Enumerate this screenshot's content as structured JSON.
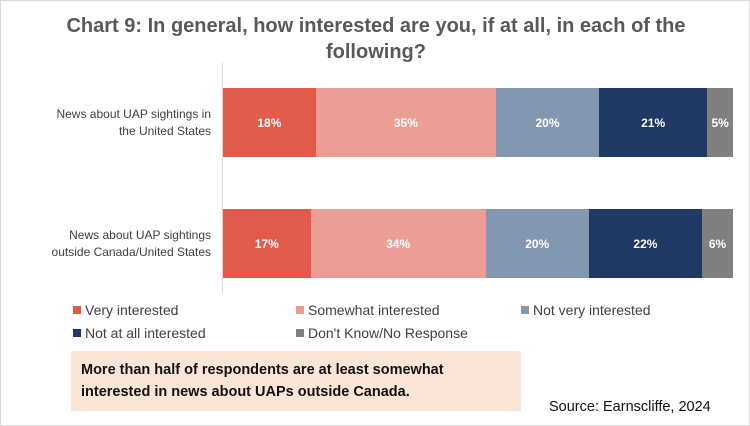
{
  "chart_data": {
    "type": "stacked-bar-horizontal",
    "title": "Chart 9: In general, how interested are you, if at all, in each of the following?",
    "categories": [
      "News about UAP sightings in the United States",
      "News about UAP sightings outside Canada/United States"
    ],
    "series": [
      {
        "name": "Very interested",
        "color": "#e15a4c",
        "values": [
          18,
          17
        ],
        "value_labels": [
          "18%",
          "17%"
        ]
      },
      {
        "name": "Somewhat interested",
        "color": "#ed9e94",
        "values": [
          35,
          34
        ],
        "value_labels": [
          "35%",
          "34%"
        ]
      },
      {
        "name": "Not very interested",
        "color": "#8497b0",
        "values": [
          20,
          20
        ],
        "value_labels": [
          "20%",
          "20%"
        ]
      },
      {
        "name": "Not at all interested",
        "color": "#1f3864",
        "values": [
          21,
          22
        ],
        "value_labels": [
          "21%",
          "22%"
        ]
      },
      {
        "name": "Don't Know/No Response",
        "color": "#7f7f7f",
        "values": [
          5,
          6
        ],
        "value_labels": [
          "5%",
          "6%"
        ]
      }
    ],
    "note": "More than half of respondents are at least somewhat interested in news about UAPs outside Canada.",
    "source": "Source: Earnscliffe, 2024"
  }
}
